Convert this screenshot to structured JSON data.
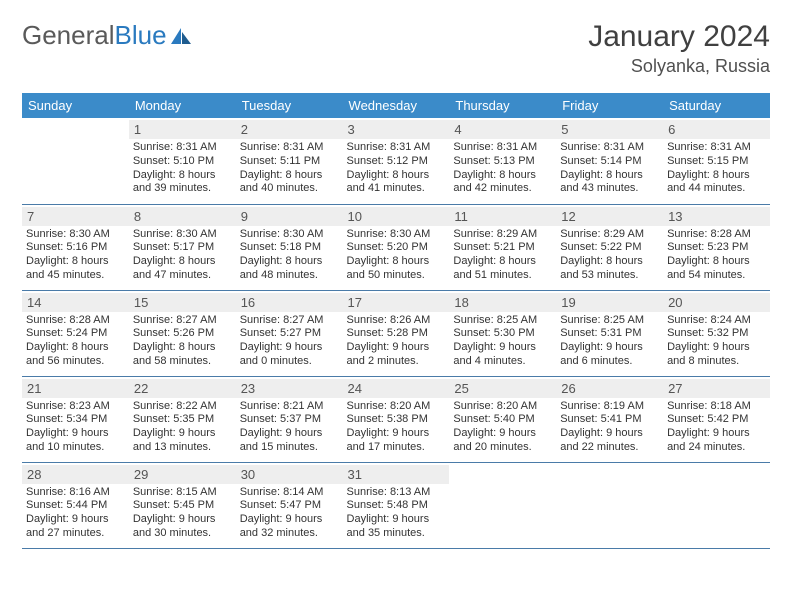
{
  "logo": {
    "text1": "General",
    "text2": "Blue"
  },
  "title": "January 2024",
  "location": "Solyanka, Russia",
  "theme": {
    "header_bg": "#3b8bc9",
    "header_text": "#ffffff",
    "daybar_bg": "#eeeeee",
    "daybar_text": "#555555",
    "cell_text": "#333333",
    "row_border": "#4a7ba8",
    "title_color": "#404040",
    "logo_gray": "#5a5a5a",
    "logo_blue": "#2a7abf"
  },
  "days": [
    "Sunday",
    "Monday",
    "Tuesday",
    "Wednesday",
    "Thursday",
    "Friday",
    "Saturday"
  ],
  "weeks": [
    [
      {
        "n": "",
        "sr": "",
        "ss": "",
        "dl": ""
      },
      {
        "n": "1",
        "sr": "Sunrise: 8:31 AM",
        "ss": "Sunset: 5:10 PM",
        "dl": "Daylight: 8 hours and 39 minutes."
      },
      {
        "n": "2",
        "sr": "Sunrise: 8:31 AM",
        "ss": "Sunset: 5:11 PM",
        "dl": "Daylight: 8 hours and 40 minutes."
      },
      {
        "n": "3",
        "sr": "Sunrise: 8:31 AM",
        "ss": "Sunset: 5:12 PM",
        "dl": "Daylight: 8 hours and 41 minutes."
      },
      {
        "n": "4",
        "sr": "Sunrise: 8:31 AM",
        "ss": "Sunset: 5:13 PM",
        "dl": "Daylight: 8 hours and 42 minutes."
      },
      {
        "n": "5",
        "sr": "Sunrise: 8:31 AM",
        "ss": "Sunset: 5:14 PM",
        "dl": "Daylight: 8 hours and 43 minutes."
      },
      {
        "n": "6",
        "sr": "Sunrise: 8:31 AM",
        "ss": "Sunset: 5:15 PM",
        "dl": "Daylight: 8 hours and 44 minutes."
      }
    ],
    [
      {
        "n": "7",
        "sr": "Sunrise: 8:30 AM",
        "ss": "Sunset: 5:16 PM",
        "dl": "Daylight: 8 hours and 45 minutes."
      },
      {
        "n": "8",
        "sr": "Sunrise: 8:30 AM",
        "ss": "Sunset: 5:17 PM",
        "dl": "Daylight: 8 hours and 47 minutes."
      },
      {
        "n": "9",
        "sr": "Sunrise: 8:30 AM",
        "ss": "Sunset: 5:18 PM",
        "dl": "Daylight: 8 hours and 48 minutes."
      },
      {
        "n": "10",
        "sr": "Sunrise: 8:30 AM",
        "ss": "Sunset: 5:20 PM",
        "dl": "Daylight: 8 hours and 50 minutes."
      },
      {
        "n": "11",
        "sr": "Sunrise: 8:29 AM",
        "ss": "Sunset: 5:21 PM",
        "dl": "Daylight: 8 hours and 51 minutes."
      },
      {
        "n": "12",
        "sr": "Sunrise: 8:29 AM",
        "ss": "Sunset: 5:22 PM",
        "dl": "Daylight: 8 hours and 53 minutes."
      },
      {
        "n": "13",
        "sr": "Sunrise: 8:28 AM",
        "ss": "Sunset: 5:23 PM",
        "dl": "Daylight: 8 hours and 54 minutes."
      }
    ],
    [
      {
        "n": "14",
        "sr": "Sunrise: 8:28 AM",
        "ss": "Sunset: 5:24 PM",
        "dl": "Daylight: 8 hours and 56 minutes."
      },
      {
        "n": "15",
        "sr": "Sunrise: 8:27 AM",
        "ss": "Sunset: 5:26 PM",
        "dl": "Daylight: 8 hours and 58 minutes."
      },
      {
        "n": "16",
        "sr": "Sunrise: 8:27 AM",
        "ss": "Sunset: 5:27 PM",
        "dl": "Daylight: 9 hours and 0 minutes."
      },
      {
        "n": "17",
        "sr": "Sunrise: 8:26 AM",
        "ss": "Sunset: 5:28 PM",
        "dl": "Daylight: 9 hours and 2 minutes."
      },
      {
        "n": "18",
        "sr": "Sunrise: 8:25 AM",
        "ss": "Sunset: 5:30 PM",
        "dl": "Daylight: 9 hours and 4 minutes."
      },
      {
        "n": "19",
        "sr": "Sunrise: 8:25 AM",
        "ss": "Sunset: 5:31 PM",
        "dl": "Daylight: 9 hours and 6 minutes."
      },
      {
        "n": "20",
        "sr": "Sunrise: 8:24 AM",
        "ss": "Sunset: 5:32 PM",
        "dl": "Daylight: 9 hours and 8 minutes."
      }
    ],
    [
      {
        "n": "21",
        "sr": "Sunrise: 8:23 AM",
        "ss": "Sunset: 5:34 PM",
        "dl": "Daylight: 9 hours and 10 minutes."
      },
      {
        "n": "22",
        "sr": "Sunrise: 8:22 AM",
        "ss": "Sunset: 5:35 PM",
        "dl": "Daylight: 9 hours and 13 minutes."
      },
      {
        "n": "23",
        "sr": "Sunrise: 8:21 AM",
        "ss": "Sunset: 5:37 PM",
        "dl": "Daylight: 9 hours and 15 minutes."
      },
      {
        "n": "24",
        "sr": "Sunrise: 8:20 AM",
        "ss": "Sunset: 5:38 PM",
        "dl": "Daylight: 9 hours and 17 minutes."
      },
      {
        "n": "25",
        "sr": "Sunrise: 8:20 AM",
        "ss": "Sunset: 5:40 PM",
        "dl": "Daylight: 9 hours and 20 minutes."
      },
      {
        "n": "26",
        "sr": "Sunrise: 8:19 AM",
        "ss": "Sunset: 5:41 PM",
        "dl": "Daylight: 9 hours and 22 minutes."
      },
      {
        "n": "27",
        "sr": "Sunrise: 8:18 AM",
        "ss": "Sunset: 5:42 PM",
        "dl": "Daylight: 9 hours and 24 minutes."
      }
    ],
    [
      {
        "n": "28",
        "sr": "Sunrise: 8:16 AM",
        "ss": "Sunset: 5:44 PM",
        "dl": "Daylight: 9 hours and 27 minutes."
      },
      {
        "n": "29",
        "sr": "Sunrise: 8:15 AM",
        "ss": "Sunset: 5:45 PM",
        "dl": "Daylight: 9 hours and 30 minutes."
      },
      {
        "n": "30",
        "sr": "Sunrise: 8:14 AM",
        "ss": "Sunset: 5:47 PM",
        "dl": "Daylight: 9 hours and 32 minutes."
      },
      {
        "n": "31",
        "sr": "Sunrise: 8:13 AM",
        "ss": "Sunset: 5:48 PM",
        "dl": "Daylight: 9 hours and 35 minutes."
      },
      {
        "n": "",
        "sr": "",
        "ss": "",
        "dl": ""
      },
      {
        "n": "",
        "sr": "",
        "ss": "",
        "dl": ""
      },
      {
        "n": "",
        "sr": "",
        "ss": "",
        "dl": ""
      }
    ]
  ]
}
